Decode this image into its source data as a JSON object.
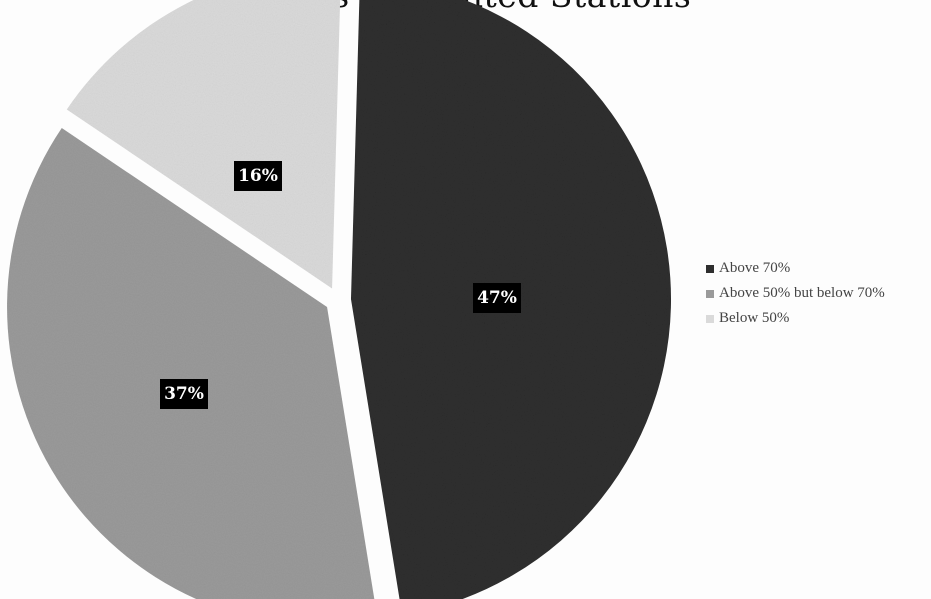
{
  "chart_data": {
    "type": "pie",
    "title": "Status of Audited Stations",
    "categories": [
      "Above 70%",
      "Above 50% but below 70%",
      "Below 50%"
    ],
    "values": [
      47,
      37,
      16
    ],
    "labels": [
      "47%",
      "37%",
      "16%"
    ],
    "colors": [
      "#2e2e2e",
      "#9a9a9a",
      "#dadada"
    ],
    "legend_position": "right",
    "exploded": true
  }
}
